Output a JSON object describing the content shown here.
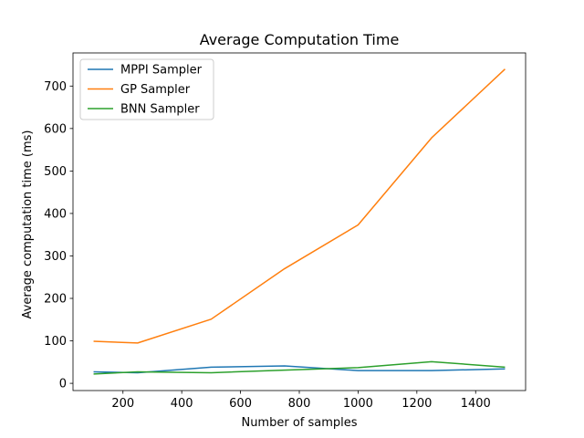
{
  "chart_data": {
    "type": "line",
    "title": "Average Computation Time",
    "xlabel": "Number of samples",
    "ylabel": "Average computation time (ms)",
    "x": [
      100,
      250,
      500,
      750,
      1000,
      1250,
      1500
    ],
    "xlim": [
      30,
      1570
    ],
    "ylim": [
      -17,
      778
    ],
    "xticks": [
      200,
      400,
      600,
      800,
      1000,
      1200,
      1400
    ],
    "yticks": [
      0,
      100,
      200,
      300,
      400,
      500,
      600,
      700
    ],
    "legend_position": "upper-left",
    "grid": false,
    "series": [
      {
        "name": "MPPI Sampler",
        "color": "#1f77b4",
        "values": [
          27,
          25,
          38,
          41,
          30,
          30,
          34
        ]
      },
      {
        "name": "GP Sampler",
        "color": "#ff7f0e",
        "values": [
          99,
          95,
          151,
          270,
          373,
          578,
          740
        ]
      },
      {
        "name": "BNN Sampler",
        "color": "#2ca02c",
        "values": [
          22,
          27,
          25,
          31,
          37,
          51,
          38
        ]
      }
    ]
  }
}
